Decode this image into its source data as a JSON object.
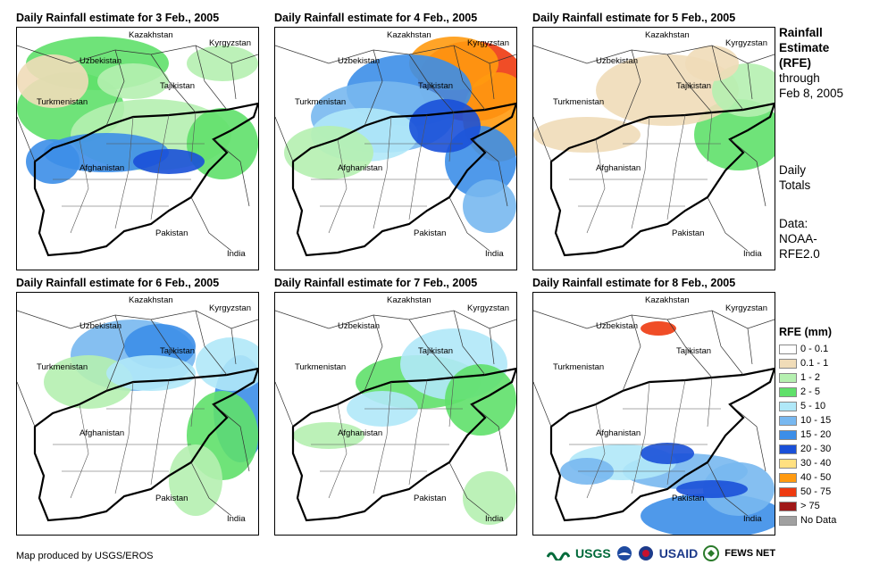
{
  "panels": [
    {
      "title": "Daily Rainfall estimate for 3 Feb., 2005",
      "day": 3
    },
    {
      "title": "Daily Rainfall estimate for 4 Feb., 2005",
      "day": 4
    },
    {
      "title": "Daily Rainfall estimate for 5 Feb., 2005",
      "day": 5
    },
    {
      "title": "Daily Rainfall estimate for 6 Feb., 2005",
      "day": 6
    },
    {
      "title": "Daily Rainfall estimate for 7 Feb., 2005",
      "day": 7
    },
    {
      "title": "Daily Rainfall estimate for 8 Feb., 2005",
      "day": 8
    }
  ],
  "country_labels": {
    "kazakhstan": "Kazakhstan",
    "kyrgyzstan": "Kyrgyzstan",
    "uzbekistan": "Uzbekistan",
    "tajikistan": "Tajikistan",
    "turkmenistan": "Turkmenistan",
    "afghanistan": "Afghanistan",
    "pakistan": "Pakistan",
    "india": "India"
  },
  "side_info": {
    "title_line1": "Rainfall",
    "title_line2": "Estimate",
    "title_line3": "(RFE)",
    "through_line1": "through",
    "through_line2": "Feb 8, 2005",
    "totals_line1": "Daily",
    "totals_line2": "Totals",
    "data_line1": "Data:",
    "data_line2": "NOAA-",
    "data_line3": "RFE2.0"
  },
  "legend": {
    "title": "RFE (mm)",
    "items": [
      {
        "label": "0 - 0.1",
        "color": "#ffffff"
      },
      {
        "label": "0.1 - 1",
        "color": "#f0dcb8"
      },
      {
        "label": "1 - 2",
        "color": "#b5f0b0"
      },
      {
        "label": "2 - 5",
        "color": "#5fe06a"
      },
      {
        "label": "5 - 10",
        "color": "#b0e8f8"
      },
      {
        "label": "10 - 15",
        "color": "#78b8f0"
      },
      {
        "label": "15 - 20",
        "color": "#3c8ee8"
      },
      {
        "label": "20 - 30",
        "color": "#1a50d8"
      },
      {
        "label": "30 - 40",
        "color": "#ffe080"
      },
      {
        "label": "40 - 50",
        "color": "#ff9a10"
      },
      {
        "label": "50 - 75",
        "color": "#ee3a10"
      },
      {
        "label": "> 75",
        "color": "#a01818"
      },
      {
        "label": "No Data",
        "color": "#a0a0a0"
      }
    ]
  },
  "footer": {
    "credit": "Map produced by USGS/EROS"
  },
  "logos": {
    "usgs": "USGS",
    "usaid": "USAID",
    "fews": "FEWS NET"
  }
}
